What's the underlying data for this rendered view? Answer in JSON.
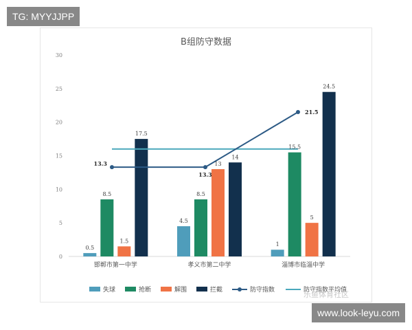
{
  "overlays": {
    "top_left_tag": "TG: MYYJJPP",
    "bottom_right_tag": "www.look-leyu.com",
    "watermark": "乐鱼体育社区"
  },
  "chart_data": {
    "type": "bar",
    "title": "B组防守数据",
    "categories": [
      "邯郸市第一中学",
      "孝义市第二中学",
      "淄博市临淄中学"
    ],
    "series": [
      {
        "name": "失球",
        "color": "#4f9dbb",
        "values": [
          0.5,
          4.5,
          1
        ]
      },
      {
        "name": "抢断",
        "color": "#1e8a63",
        "values": [
          8.5,
          8.5,
          15.5
        ]
      },
      {
        "name": "解围",
        "color": "#f07345",
        "values": [
          1.5,
          13,
          5
        ]
      },
      {
        "name": "拦截",
        "color": "#12304d",
        "values": [
          17.5,
          14,
          24.5
        ]
      }
    ],
    "line_series": {
      "name": "防守指数",
      "color": "#2c5a85",
      "values": [
        13.3,
        13.3,
        21.5
      ],
      "labels": [
        "13.3",
        "13.3",
        "21.5"
      ]
    },
    "avg_line": {
      "name": "防守指数平均值",
      "color": "#4aa8bc",
      "value": 16
    },
    "value_labels": [
      [
        "0.5",
        "8.5",
        "1.5",
        "17.5"
      ],
      [
        "4.5",
        "8.5",
        "13",
        "14"
      ],
      [
        "1",
        "15.5",
        "5",
        "24.5"
      ]
    ],
    "ylim": [
      0,
      30
    ],
    "yticks": [
      "0",
      "5",
      "10",
      "15",
      "20",
      "25",
      "30"
    ],
    "grid": false,
    "legend": "bottom"
  }
}
